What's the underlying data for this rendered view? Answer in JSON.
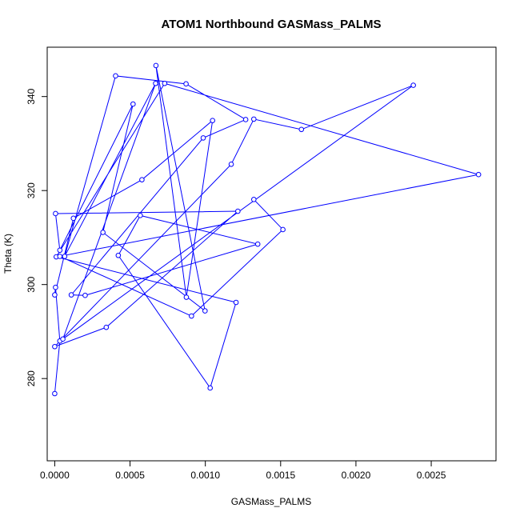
{
  "chart_data": {
    "type": "line",
    "title": "ATOM1 Northbound GASMass_PALMS",
    "xlabel": "GASMass_PALMS",
    "ylabel": "Theta (K)",
    "xlim": [
      -5e-05,
      0.00293
    ],
    "ylim": [
      262.5,
      350.5
    ],
    "x_ticks": [
      0.0,
      0.0005,
      0.001,
      0.0015,
      0.002,
      0.0025
    ],
    "x_tick_labels": [
      "0.0000",
      "0.0005",
      "0.0010",
      "0.0015",
      "0.0020",
      "0.0025"
    ],
    "y_ticks": [
      280,
      300,
      320,
      340
    ],
    "y_tick_labels": [
      "280",
      "300",
      "320",
      "340"
    ],
    "grid": false,
    "series": [
      {
        "color": "#0000ff",
        "marker": "open-circle",
        "x": [
          0.0,
          3.4e-05,
          5.4e-06,
          0.0,
          0.000124,
          0.000579,
          0.001048,
          0.000874,
          0.000672,
          0.000998,
          0.00032,
          0.00052,
          3.4e-05,
          5.4e-06,
          0.001216,
          0.000342,
          0.0,
          0.001172,
          0.001322,
          0.001638,
          0.002381,
          5.4e-05,
          0.00067,
          6.6e-05,
          0.000404,
          0.000872,
          0.001268,
          0.000986,
          0.00011,
          0.000202,
          0.001348,
          0.000568,
          0.000422,
          0.001032,
          0.001204,
          1e-05,
          0.00073,
          0.002814,
          3.4e-05,
          0.000908,
          0.001515,
          0.001322
        ],
        "y": [
          276.8,
          288.0,
          299.4,
          297.8,
          314.1,
          322.3,
          334.9,
          297.3,
          346.6,
          294.4,
          311.1,
          338.4,
          307.3,
          315.1,
          315.6,
          290.9,
          286.8,
          325.6,
          335.2,
          333.0,
          342.4,
          288.4,
          342.8,
          306.0,
          344.4,
          342.7,
          335.1,
          331.2,
          297.8,
          297.7,
          308.6,
          314.7,
          306.2,
          278.0,
          296.2,
          305.9,
          342.8,
          323.4,
          306.0,
          293.3,
          311.7,
          318.1
        ]
      }
    ]
  }
}
